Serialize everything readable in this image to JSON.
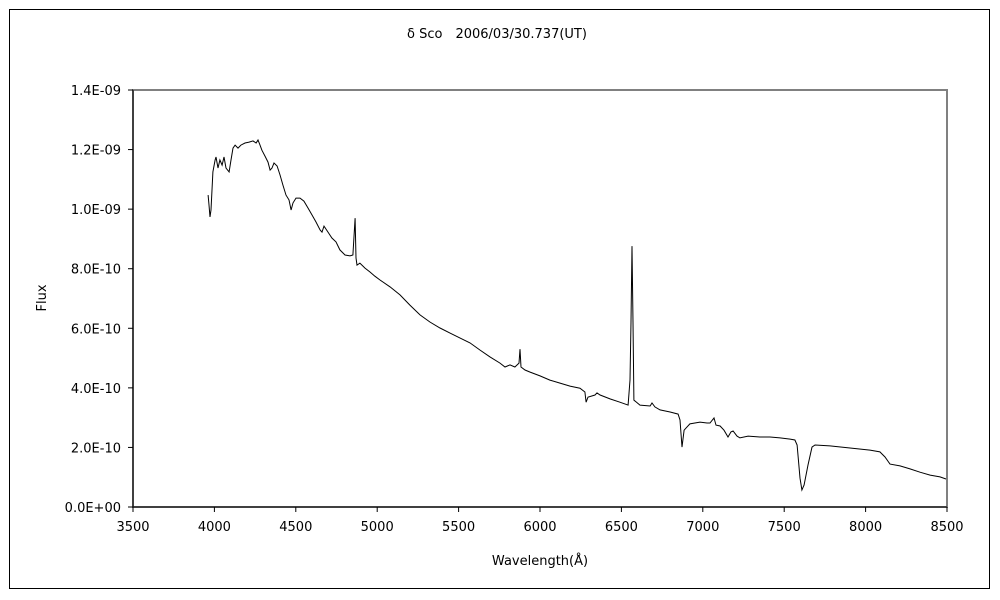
{
  "chart_data": {
    "type": "line",
    "title": "δ Sco　2006/03/30.737(UT)",
    "xlabel": "Wavelength(Å)",
    "ylabel": "Flux",
    "xlim": [
      3500,
      8500
    ],
    "ylim": [
      0,
      1.4e-09
    ],
    "xticks": [
      3500,
      4000,
      4500,
      5000,
      5500,
      6000,
      6500,
      7000,
      7500,
      8000,
      8500
    ],
    "xtick_labels": [
      "3500",
      "4000",
      "4500",
      "5000",
      "5500",
      "6000",
      "6500",
      "7000",
      "7500",
      "8000",
      "8500"
    ],
    "yticks": [
      0,
      2e-10,
      4e-10,
      6e-10,
      8e-10,
      1e-09,
      1.2e-09,
      1.4e-09
    ],
    "ytick_labels": [
      "0.0E+00",
      "2.0E-10",
      "4.0E-10",
      "6.0E-10",
      "8.0E-10",
      "1.0E-09",
      "1.2E-09",
      "1.4E-09"
    ],
    "grid": false,
    "legend": "none",
    "line_color": "#000000",
    "series": [
      {
        "points": [
          [
            3961,
            1.047e-09
          ],
          [
            3967,
            1.014e-09
          ],
          [
            3973,
            9.74e-10
          ],
          [
            3979,
            9.97e-10
          ],
          [
            3991,
            1.125e-09
          ],
          [
            4004,
            1.165e-09
          ],
          [
            4010,
            1.175e-09
          ],
          [
            4022,
            1.138e-09
          ],
          [
            4034,
            1.165e-09
          ],
          [
            4047,
            1.148e-09
          ],
          [
            4059,
            1.175e-09
          ],
          [
            4071,
            1.138e-09
          ],
          [
            4090,
            1.125e-09
          ],
          [
            4102,
            1.165e-09
          ],
          [
            4114,
            1.205e-09
          ],
          [
            4127,
            1.215e-09
          ],
          [
            4145,
            1.205e-09
          ],
          [
            4163,
            1.215e-09
          ],
          [
            4188,
            1.222e-09
          ],
          [
            4213,
            1.225e-09
          ],
          [
            4237,
            1.229e-09
          ],
          [
            4256,
            1.222e-09
          ],
          [
            4268,
            1.232e-09
          ],
          [
            4280,
            1.215e-09
          ],
          [
            4292,
            1.198e-09
          ],
          [
            4311,
            1.178e-09
          ],
          [
            4329,
            1.158e-09
          ],
          [
            4342,
            1.131e-09
          ],
          [
            4354,
            1.138e-09
          ],
          [
            4366,
            1.155e-09
          ],
          [
            4385,
            1.145e-09
          ],
          [
            4403,
            1.115e-09
          ],
          [
            4421,
            1.081e-09
          ],
          [
            4440,
            1.047e-09
          ],
          [
            4458,
            1.031e-09
          ],
          [
            4471,
            9.97e-10
          ],
          [
            4483,
            1.021e-09
          ],
          [
            4501,
            1.037e-09
          ],
          [
            4526,
            1.037e-09
          ],
          [
            4550,
            1.027e-09
          ],
          [
            4575,
            1.004e-09
          ],
          [
            4600,
            9.8e-10
          ],
          [
            4624,
            9.57e-10
          ],
          [
            4649,
            9.3e-10
          ],
          [
            4661,
            9.23e-10
          ],
          [
            4673,
            9.43e-10
          ],
          [
            4698,
            9.23e-10
          ],
          [
            4722,
            9.03e-10
          ],
          [
            4747,
            8.9e-10
          ],
          [
            4771,
            8.63e-10
          ],
          [
            4802,
            8.46e-10
          ],
          [
            4833,
            8.43e-10
          ],
          [
            4851,
            8.46e-10
          ],
          [
            4864,
            9.7e-10
          ],
          [
            4870,
            8.36e-10
          ],
          [
            4876,
            8.12e-10
          ],
          [
            4894,
            8.19e-10
          ],
          [
            4925,
            8.02e-10
          ],
          [
            4956,
            7.89e-10
          ],
          [
            4986,
            7.75e-10
          ],
          [
            5017,
            7.62e-10
          ],
          [
            5079,
            7.39e-10
          ],
          [
            5140,
            7.12e-10
          ],
          [
            5201,
            6.78e-10
          ],
          [
            5263,
            6.45e-10
          ],
          [
            5324,
            6.21e-10
          ],
          [
            5386,
            6.01e-10
          ],
          [
            5447,
            5.84e-10
          ],
          [
            5509,
            5.67e-10
          ],
          [
            5570,
            5.51e-10
          ],
          [
            5631,
            5.27e-10
          ],
          [
            5693,
            5.04e-10
          ],
          [
            5754,
            4.83e-10
          ],
          [
            5785,
            4.7e-10
          ],
          [
            5816,
            4.77e-10
          ],
          [
            5846,
            4.7e-10
          ],
          [
            5871,
            4.83e-10
          ],
          [
            5877,
            5.3e-10
          ],
          [
            5883,
            4.7e-10
          ],
          [
            5908,
            4.6e-10
          ],
          [
            5939,
            4.53e-10
          ],
          [
            6000,
            4.4e-10
          ],
          [
            6061,
            4.26e-10
          ],
          [
            6123,
            4.16e-10
          ],
          [
            6184,
            4.06e-10
          ],
          [
            6246,
            3.99e-10
          ],
          [
            6276,
            3.86e-10
          ],
          [
            6283,
            3.52e-10
          ],
          [
            6295,
            3.69e-10
          ],
          [
            6338,
            3.76e-10
          ],
          [
            6350,
            3.83e-10
          ],
          [
            6369,
            3.76e-10
          ],
          [
            6430,
            3.63e-10
          ],
          [
            6491,
            3.52e-10
          ],
          [
            6541,
            3.42e-10
          ],
          [
            6553,
            4.26e-10
          ],
          [
            6559,
            6.21e-10
          ],
          [
            6565,
            8.76e-10
          ],
          [
            6571,
            6.21e-10
          ],
          [
            6577,
            3.59e-10
          ],
          [
            6614,
            3.42e-10
          ],
          [
            6676,
            3.39e-10
          ],
          [
            6688,
            3.49e-10
          ],
          [
            6706,
            3.36e-10
          ],
          [
            6737,
            3.26e-10
          ],
          [
            6799,
            3.19e-10
          ],
          [
            6848,
            3.12e-10
          ],
          [
            6860,
            2.92e-10
          ],
          [
            6872,
            2.01e-10
          ],
          [
            6885,
            2.58e-10
          ],
          [
            6897,
            2.65e-10
          ],
          [
            6921,
            2.79e-10
          ],
          [
            6983,
            2.85e-10
          ],
          [
            7026,
            2.82e-10
          ],
          [
            7044,
            2.82e-10
          ],
          [
            7069,
            2.99e-10
          ],
          [
            7081,
            2.75e-10
          ],
          [
            7106,
            2.72e-10
          ],
          [
            7130,
            2.58e-10
          ],
          [
            7155,
            2.35e-10
          ],
          [
            7173,
            2.52e-10
          ],
          [
            7186,
            2.55e-10
          ],
          [
            7210,
            2.38e-10
          ],
          [
            7228,
            2.32e-10
          ],
          [
            7278,
            2.38e-10
          ],
          [
            7351,
            2.35e-10
          ],
          [
            7413,
            2.35e-10
          ],
          [
            7474,
            2.32e-10
          ],
          [
            7536,
            2.28e-10
          ],
          [
            7566,
            2.25e-10
          ],
          [
            7579,
            2.08e-10
          ],
          [
            7597,
            9.7e-11
          ],
          [
            7609,
            5.7e-11
          ],
          [
            7622,
            7.4e-11
          ],
          [
            7646,
            1.41e-10
          ],
          [
            7671,
            2.01e-10
          ],
          [
            7689,
            2.08e-10
          ],
          [
            7781,
            2.05e-10
          ],
          [
            7904,
            1.98e-10
          ],
          [
            8027,
            1.91e-10
          ],
          [
            8088,
            1.85e-10
          ],
          [
            8119,
            1.68e-10
          ],
          [
            8150,
            1.44e-10
          ],
          [
            8211,
            1.38e-10
          ],
          [
            8273,
            1.28e-10
          ],
          [
            8334,
            1.17e-10
          ],
          [
            8396,
            1.07e-10
          ],
          [
            8457,
            1.01e-10
          ],
          [
            8494,
            9.4e-11
          ]
        ]
      }
    ]
  }
}
